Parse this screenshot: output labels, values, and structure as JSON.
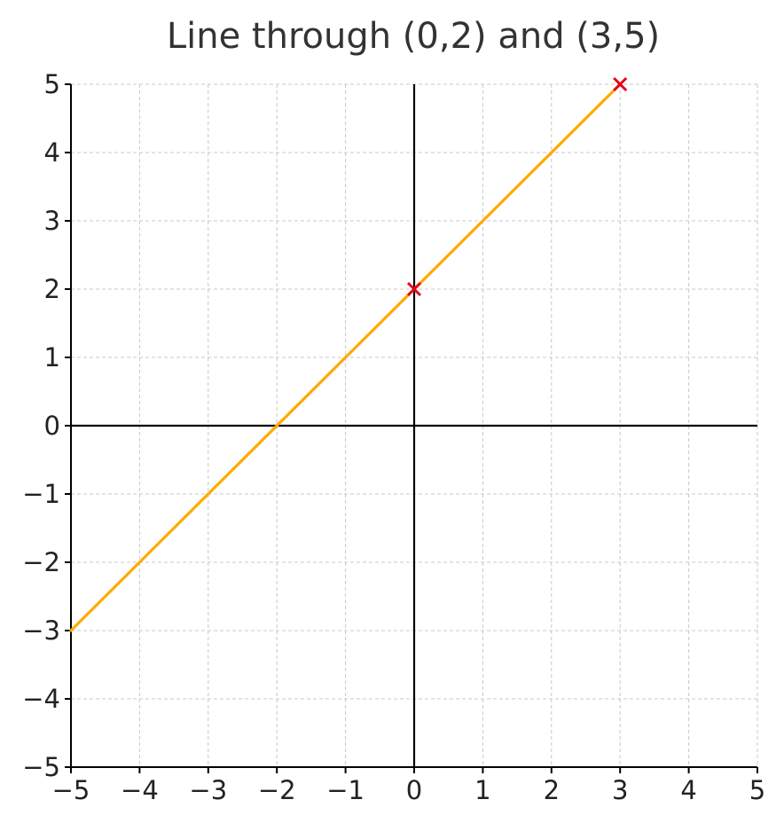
{
  "chart_data": {
    "type": "line",
    "title": "Line through (0,2) and (3,5)",
    "xlabel": "",
    "ylabel": "",
    "xlim": [
      -5,
      5
    ],
    "ylim": [
      -5,
      5
    ],
    "x_ticks": [
      -5,
      -4,
      -3,
      -2,
      -1,
      0,
      1,
      2,
      3,
      4,
      5
    ],
    "y_ticks": [
      -5,
      -4,
      -3,
      -2,
      -1,
      0,
      1,
      2,
      3,
      4,
      5
    ],
    "x_tick_labels": [
      "−5",
      "−4",
      "−3",
      "−2",
      "−1",
      "0",
      "1",
      "2",
      "3",
      "4",
      "5"
    ],
    "y_tick_labels": [
      "−5",
      "−4",
      "−3",
      "−2",
      "−1",
      "0",
      "1",
      "2",
      "3",
      "4",
      "5"
    ],
    "grid": true,
    "series": [
      {
        "type": "line",
        "color": "#ffaa00",
        "x": [
          -5,
          3
        ],
        "y": [
          -3,
          5
        ]
      },
      {
        "type": "scatter",
        "marker": "x",
        "color": "#e8001c",
        "x": [
          0,
          3
        ],
        "y": [
          2,
          5
        ]
      }
    ]
  }
}
